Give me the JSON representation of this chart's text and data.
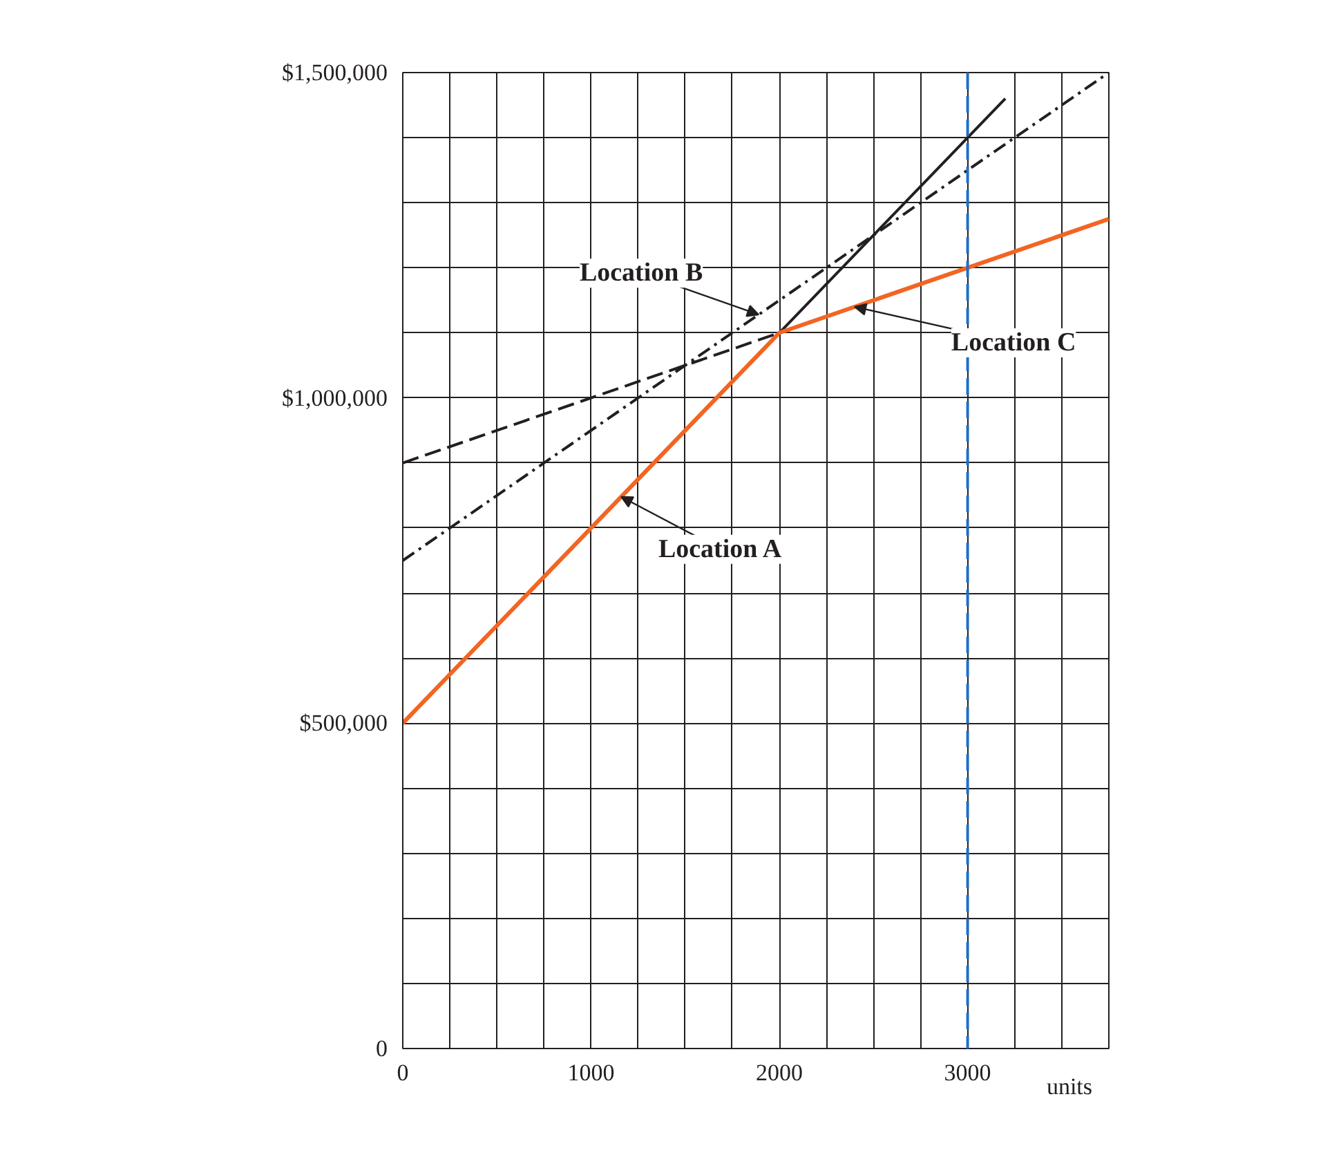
{
  "chart_data": {
    "type": "line",
    "xlabel": "units",
    "xlim": [
      0,
      3750
    ],
    "ylim": [
      0,
      1500000
    ],
    "xticks": [
      0,
      {
        "value": 250,
        "label": null
      },
      {
        "value": 500,
        "label": null
      },
      {
        "value": 750,
        "label": null
      },
      1000,
      {
        "value": 1250,
        "label": null
      },
      {
        "value": 1500,
        "label": null
      },
      {
        "value": 1750,
        "label": null
      },
      2000,
      {
        "value": 2250,
        "label": null
      },
      {
        "value": 2500,
        "label": null
      },
      {
        "value": 2750,
        "label": null
      },
      3000,
      {
        "value": 3250,
        "label": null
      },
      {
        "value": 3500,
        "label": null
      }
    ],
    "yticks": [
      0,
      {
        "value": 100000,
        "label": null
      },
      {
        "value": 200000,
        "label": null
      },
      {
        "value": 300000,
        "label": null
      },
      {
        "value": 400000,
        "label": null
      },
      {
        "value": 500000,
        "label": "$500,000"
      },
      {
        "value": 600000,
        "label": null
      },
      {
        "value": 700000,
        "label": null
      },
      {
        "value": 800000,
        "label": null
      },
      {
        "value": 900000,
        "label": null
      },
      {
        "value": 1000000,
        "label": "$1,000,000"
      },
      {
        "value": 1100000,
        "label": null
      },
      {
        "value": 1200000,
        "label": null
      },
      {
        "value": 1300000,
        "label": null
      },
      {
        "value": 1400000,
        "label": null
      },
      {
        "value": 1500000,
        "label": "$1,500,000"
      }
    ],
    "grid": true,
    "series": [
      {
        "color": "#231f20",
        "line_style": "solid",
        "x": [
          2000,
          3200
        ],
        "values": [
          1100000,
          1460000
        ]
      },
      {
        "color": "#231f20",
        "line_style": "dashdot",
        "x": [
          0,
          3750
        ],
        "values": [
          750000,
          1500000
        ]
      },
      {
        "color": "#231f20",
        "line_style": "dashed",
        "x": [
          0,
          2000
        ],
        "values": [
          900000,
          1100000
        ]
      },
      {
        "color": "#f26522",
        "line_style": "solid",
        "x": [
          0,
          2000,
          3750
        ],
        "values": [
          500000,
          1100000,
          1275000
        ]
      }
    ],
    "ref_lines": [
      {
        "axis": "x",
        "value": 3000,
        "color": "#1f6fc5",
        "line_style": "dashed"
      }
    ],
    "annotations": [
      {
        "text": "Location B",
        "x": 1890,
        "y": 1128000
      },
      {
        "text": "Location A",
        "x": 1160,
        "y": 848000
      },
      {
        "text": "Location C",
        "x": 2400,
        "y": 1140000
      }
    ]
  }
}
